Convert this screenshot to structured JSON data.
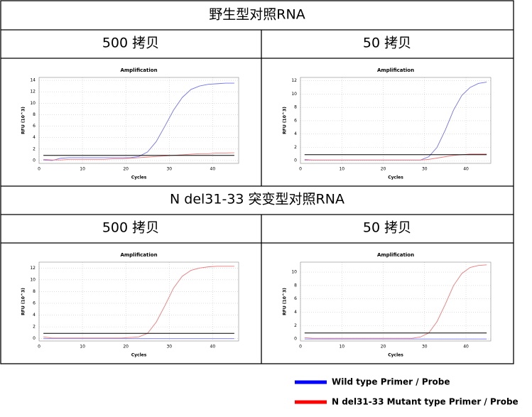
{
  "sections": [
    {
      "title": "野生型对照RNA",
      "columns": [
        "500 拷贝",
        "50 拷贝"
      ]
    },
    {
      "title": "N del31-33 突变型对照RNA",
      "columns": [
        "500 拷贝",
        "50 拷贝"
      ]
    }
  ],
  "chart_data": [
    {
      "type": "line",
      "title": "Amplification",
      "x_label": "Cycles",
      "y_label": "RFU (10^3)",
      "x": [
        1,
        3,
        5,
        7,
        9,
        11,
        13,
        15,
        17,
        19,
        21,
        23,
        25,
        27,
        29,
        31,
        33,
        35,
        37,
        39,
        41,
        43,
        45
      ],
      "xlim": [
        0,
        46
      ],
      "xticks": [
        0,
        10,
        20,
        30,
        40
      ],
      "ylim": [
        -0.5,
        14.5
      ],
      "yticks": [
        0,
        2,
        4,
        6,
        8,
        10,
        12,
        14
      ],
      "grid": true,
      "threshold": 0.9,
      "threshold_color": "#000000",
      "series": [
        {
          "color": "#7373f2",
          "values": [
            0.1,
            0.0,
            0.4,
            0.5,
            0.5,
            0.5,
            0.5,
            0.5,
            0.5,
            0.5,
            0.5,
            0.7,
            1.5,
            3.3,
            6.0,
            8.8,
            11.0,
            12.4,
            13.0,
            13.3,
            13.4,
            13.5,
            13.5
          ]
        },
        {
          "color": "#f07a7a",
          "values": [
            0.2,
            0.1,
            0.1,
            0.2,
            0.2,
            0.2,
            0.2,
            0.2,
            0.3,
            0.3,
            0.4,
            0.5,
            0.6,
            0.7,
            0.8,
            0.9,
            1.0,
            1.1,
            1.2,
            1.2,
            1.3,
            1.3,
            1.35
          ]
        }
      ]
    },
    {
      "type": "line",
      "title": "Amplification",
      "x_label": "Cycles",
      "y_label": "RFU (10^3)",
      "x": [
        1,
        3,
        5,
        7,
        9,
        11,
        13,
        15,
        17,
        19,
        21,
        23,
        25,
        27,
        29,
        31,
        33,
        35,
        37,
        39,
        41,
        43,
        45
      ],
      "xlim": [
        0,
        46
      ],
      "xticks": [
        0,
        10,
        20,
        30,
        40
      ],
      "ylim": [
        -0.4,
        12.5
      ],
      "yticks": [
        0,
        2,
        4,
        6,
        8,
        10,
        12
      ],
      "grid": true,
      "threshold": 0.9,
      "threshold_color": "#000000",
      "series": [
        {
          "color": "#7373f2",
          "values": [
            0.1,
            0.1,
            0.1,
            0.1,
            0.1,
            0.1,
            0.1,
            0.1,
            0.1,
            0.1,
            0.1,
            0.1,
            0.1,
            0.1,
            0.1,
            0.6,
            2.0,
            4.6,
            7.6,
            9.8,
            11.0,
            11.6,
            11.8
          ]
        },
        {
          "color": "#f07a7a",
          "values": [
            0.2,
            0.1,
            0.1,
            0.1,
            0.1,
            0.1,
            0.1,
            0.1,
            0.1,
            0.1,
            0.1,
            0.1,
            0.1,
            0.1,
            0.1,
            0.2,
            0.4,
            0.6,
            0.8,
            0.9,
            1.0,
            1.0,
            1.0
          ]
        }
      ]
    },
    {
      "type": "line",
      "title": "Amplification",
      "x_label": "Cycles",
      "y_label": "RFU (10^3)",
      "x": [
        1,
        3,
        5,
        7,
        9,
        11,
        13,
        15,
        17,
        19,
        21,
        23,
        25,
        27,
        29,
        31,
        33,
        35,
        37,
        39,
        41,
        43,
        45
      ],
      "xlim": [
        0,
        46
      ],
      "xticks": [
        0,
        10,
        20,
        30,
        40
      ],
      "ylim": [
        -0.4,
        13
      ],
      "yticks": [
        0,
        2,
        4,
        6,
        8,
        10,
        12
      ],
      "grid": true,
      "threshold": 0.9,
      "threshold_color": "#000000",
      "series": [
        {
          "color": "#7373f2",
          "values": [
            0,
            0,
            0,
            0,
            0,
            0,
            0,
            0,
            0,
            0,
            0,
            0,
            0,
            0,
            0,
            0,
            0,
            0,
            0,
            0,
            0,
            0,
            0
          ]
        },
        {
          "color": "#f07a7a",
          "values": [
            0.3,
            0.1,
            0.1,
            0.1,
            0.1,
            0.1,
            0.1,
            0.1,
            0.1,
            0.1,
            0.2,
            0.3,
            0.9,
            2.8,
            5.6,
            8.6,
            10.6,
            11.6,
            12.0,
            12.2,
            12.3,
            12.3,
            12.3
          ]
        }
      ]
    },
    {
      "type": "line",
      "title": "Amplification",
      "x_label": "Cycles",
      "y_label": "RFU (10^3)",
      "x": [
        1,
        3,
        5,
        7,
        9,
        11,
        13,
        15,
        17,
        19,
        21,
        23,
        25,
        27,
        29,
        31,
        33,
        35,
        37,
        39,
        41,
        43,
        45
      ],
      "xlim": [
        0,
        46
      ],
      "xticks": [
        0,
        10,
        20,
        30,
        40
      ],
      "ylim": [
        -0.3,
        11.5
      ],
      "yticks": [
        0,
        2,
        4,
        6,
        8,
        10
      ],
      "grid": true,
      "threshold": 0.9,
      "threshold_color": "#000000",
      "series": [
        {
          "color": "#7373f2",
          "values": [
            0,
            0,
            0,
            0,
            0,
            0,
            0,
            0,
            0,
            0,
            0,
            0,
            0,
            0,
            0,
            0,
            0,
            0,
            0,
            0,
            0,
            0,
            0
          ]
        },
        {
          "color": "#f07a7a",
          "values": [
            0.2,
            0.1,
            0.1,
            0.1,
            0.1,
            0.1,
            0.1,
            0.1,
            0.1,
            0.1,
            0.1,
            0.1,
            0.1,
            0.1,
            0.3,
            0.9,
            2.6,
            5.2,
            8.0,
            9.8,
            10.7,
            11.0,
            11.1
          ]
        }
      ]
    }
  ],
  "legend": [
    {
      "name": "Wild type Primer / Probe",
      "color": "#0000ff"
    },
    {
      "name": "N del31-33 Mutant type Primer / Probe",
      "color": "#ff0000"
    }
  ]
}
